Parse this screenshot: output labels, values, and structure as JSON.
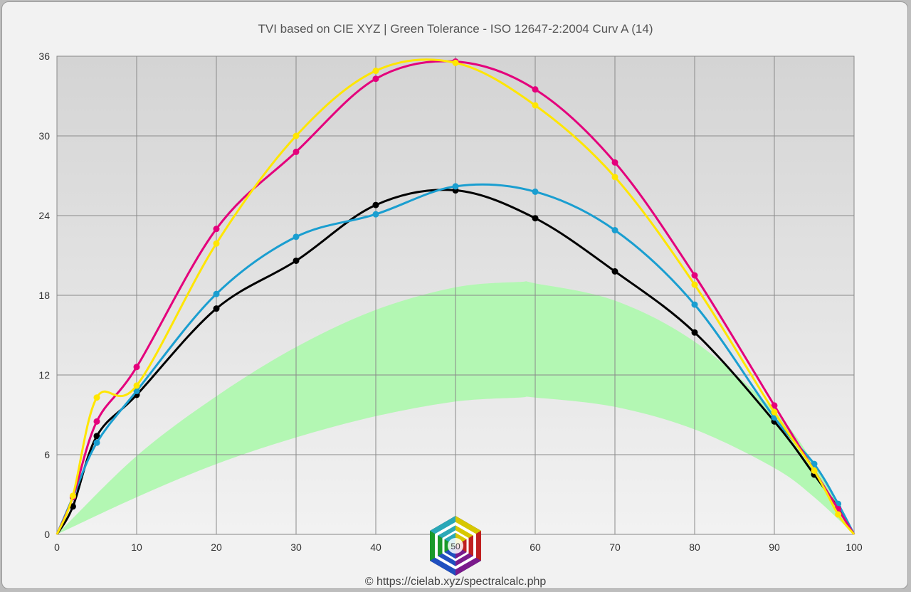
{
  "chart_data": {
    "type": "line",
    "title": "TVI based on CIE XYZ  |  Green Tolerance - ISO 12647-2:2004 Curv A (14)",
    "xlim": [
      0,
      100
    ],
    "ylim": [
      0,
      36
    ],
    "x_ticks": [
      "0",
      "10",
      "20",
      "30",
      "40",
      "50",
      "60",
      "70",
      "80",
      "90",
      "100"
    ],
    "y_ticks": [
      "0",
      "6",
      "12",
      "18",
      "24",
      "30",
      "36"
    ],
    "grid": true,
    "legend": "none",
    "tolerance_band": {
      "color": "#b3f7b3",
      "x": [
        0,
        10,
        20,
        30,
        40,
        50,
        58,
        60,
        70,
        80,
        90,
        95,
        100
      ],
      "lower": [
        0,
        2.8,
        5.3,
        7.3,
        8.9,
        10.0,
        10.3,
        10.3,
        9.6,
        7.9,
        5.0,
        2.8,
        0
      ],
      "upper": [
        0,
        5.9,
        10.4,
        14.1,
        16.9,
        18.6,
        19.0,
        18.9,
        17.6,
        14.5,
        9.3,
        5.3,
        0
      ]
    },
    "series": [
      {
        "color": "#000000",
        "x": [
          0,
          2,
          5,
          10,
          20,
          30,
          40,
          50,
          60,
          70,
          80,
          90,
          95,
          98,
          100
        ],
        "values": [
          0,
          2.1,
          7.4,
          10.5,
          17.0,
          20.6,
          24.8,
          25.9,
          23.8,
          19.8,
          15.2,
          8.5,
          4.5,
          2.0,
          0
        ]
      },
      {
        "color": "#1a9ed0",
        "x": [
          0,
          2,
          5,
          10,
          20,
          30,
          40,
          50,
          60,
          70,
          80,
          90,
          95,
          98,
          100
        ],
        "values": [
          0,
          2.8,
          6.9,
          10.8,
          18.1,
          22.4,
          24.1,
          26.2,
          25.8,
          22.9,
          17.3,
          8.8,
          5.3,
          2.3,
          0
        ]
      },
      {
        "color": "#e4007c",
        "x": [
          0,
          2,
          5,
          10,
          20,
          30,
          40,
          50,
          60,
          70,
          80,
          90,
          95,
          98,
          100
        ],
        "values": [
          0,
          2.8,
          8.5,
          12.6,
          23.0,
          28.8,
          34.3,
          35.6,
          33.5,
          28.0,
          19.5,
          9.7,
          4.8,
          1.9,
          0
        ]
      },
      {
        "color": "#ffe600",
        "x": [
          0,
          2,
          5,
          10,
          20,
          30,
          40,
          50,
          60,
          70,
          80,
          90,
          95,
          98,
          100
        ],
        "values": [
          0,
          2.9,
          10.3,
          11.2,
          21.9,
          30.0,
          34.9,
          35.5,
          32.3,
          26.9,
          18.8,
          9.2,
          4.8,
          1.5,
          0
        ]
      }
    ],
    "logo_label": "50",
    "credit": "© https://cielab.xyz/spectralcalc.php"
  }
}
